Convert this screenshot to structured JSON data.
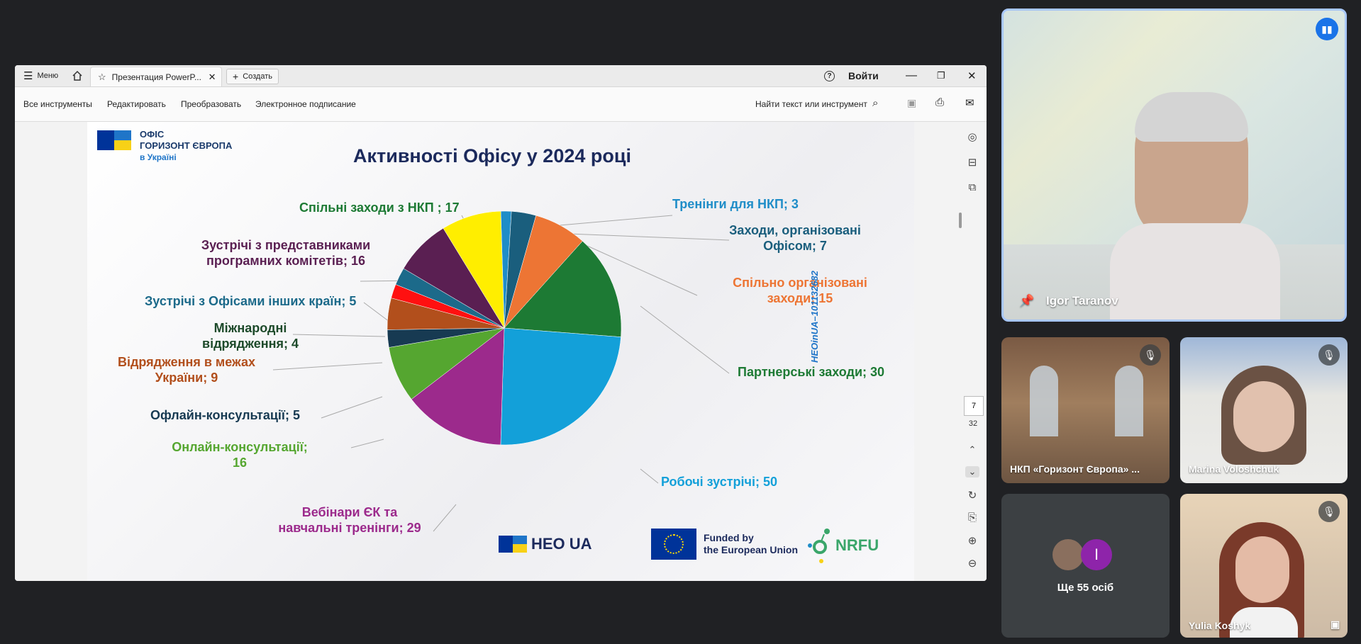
{
  "window": {
    "menu_label": "Меню",
    "tab_title": "Презентация PowerP...",
    "create_label": "Создать",
    "signin_label": "Войти"
  },
  "toolbar": {
    "items": [
      "Все инструменты",
      "Редактировать",
      "Преобразовать",
      "Электронное подписание"
    ],
    "search_label": "Найти текст или инструмент"
  },
  "pager": {
    "current_page": "7",
    "total_pages": "32"
  },
  "slide": {
    "logo_line1": "ОФІС",
    "logo_line2": "ГОРИЗОНТ ЄВРОПА",
    "logo_line3": "в Україні",
    "title": "Активності Офісу у 2024 році",
    "vertical_code": "HEOinUA–101132682",
    "footer_heo": "HEO",
    "footer_heo_suffix": "UA",
    "footer_eu_line1": "Funded by",
    "footer_eu_line2": "the European Union",
    "footer_nrfu": "NRFU"
  },
  "chart_data": {
    "type": "pie",
    "title": "Активності Офісу у 2024 році",
    "slices": [
      {
        "label": "Тренінги для НКП; 3",
        "value": 3,
        "color": "#1f8dc8"
      },
      {
        "label": "Заходи, організовані Офісом; 7",
        "value": 7,
        "color": "#1a5e7d"
      },
      {
        "label": "Спільно організовані заходи; 15",
        "value": 15,
        "color": "#ed7534"
      },
      {
        "label": "Партнерські заходи; 30",
        "value": 30,
        "color": "#1d7a34"
      },
      {
        "label": "Робочі зустрічі; 50",
        "value": 50,
        "color": "#13a0d9"
      },
      {
        "label": "Вебінари ЄК та навчальні тренінги; 29",
        "value": 29,
        "color": "#9c2a8c"
      },
      {
        "label": "Онлайн-консультації; 16",
        "value": 16,
        "color": "#55a630"
      },
      {
        "label": "Офлайн-консультації; 5",
        "value": 5,
        "color": "#173a52"
      },
      {
        "label": "Відрядження в межах України; 9",
        "value": 9,
        "color": "#b24f1c"
      },
      {
        "label": "Міжнародні відрядження; 4",
        "value": 4,
        "color": "#ff1010"
      },
      {
        "label": "Зустрічі з Офісами інших країн; 5",
        "value": 5,
        "color": "#1c6a8a"
      },
      {
        "label": "Зустрічі з представниками програмних комітетів; 16",
        "value": 16,
        "color": "#5a1f52"
      },
      {
        "label": "Спільні заходи з НКП; 17",
        "value": 17,
        "color": "#ffee00"
      }
    ]
  },
  "labels": {
    "l1": "Тренінги для НКП; 3",
    "l2a": "Заходи, організовані",
    "l2b": "Офісом; 7",
    "l3a": "Спільно організовані",
    "l3b": "заходи; 15",
    "l4": "Партнерські заходи; 30",
    "l5": "Робочі зустрічі; 50",
    "l6a": "Вебінари ЄК та",
    "l6b": "навчальні тренінги; 29",
    "l7a": "Онлайн-консультації;",
    "l7b": "16",
    "l8": "Офлайн-консультації; 5",
    "l9a": "Відрядження в межах",
    "l9b": "України; 9",
    "l10a": "Міжнародні",
    "l10b": "відрядження; 4",
    "l11": "Зустрічі з Офісами інших країн; 5",
    "l12a": "Зустрічі з представниками",
    "l12b": "програмних комітетів; 16",
    "l13": "Спільні заходи з НКП ; 17"
  },
  "participants": {
    "main": "Igor Taranov",
    "p1": "НКП «Горизонт Європа» ...",
    "p2": "Marina Voloshchuk",
    "others": "Ще 55 осіб",
    "others_initial": "I",
    "p3": "Yulia Koshyk"
  }
}
